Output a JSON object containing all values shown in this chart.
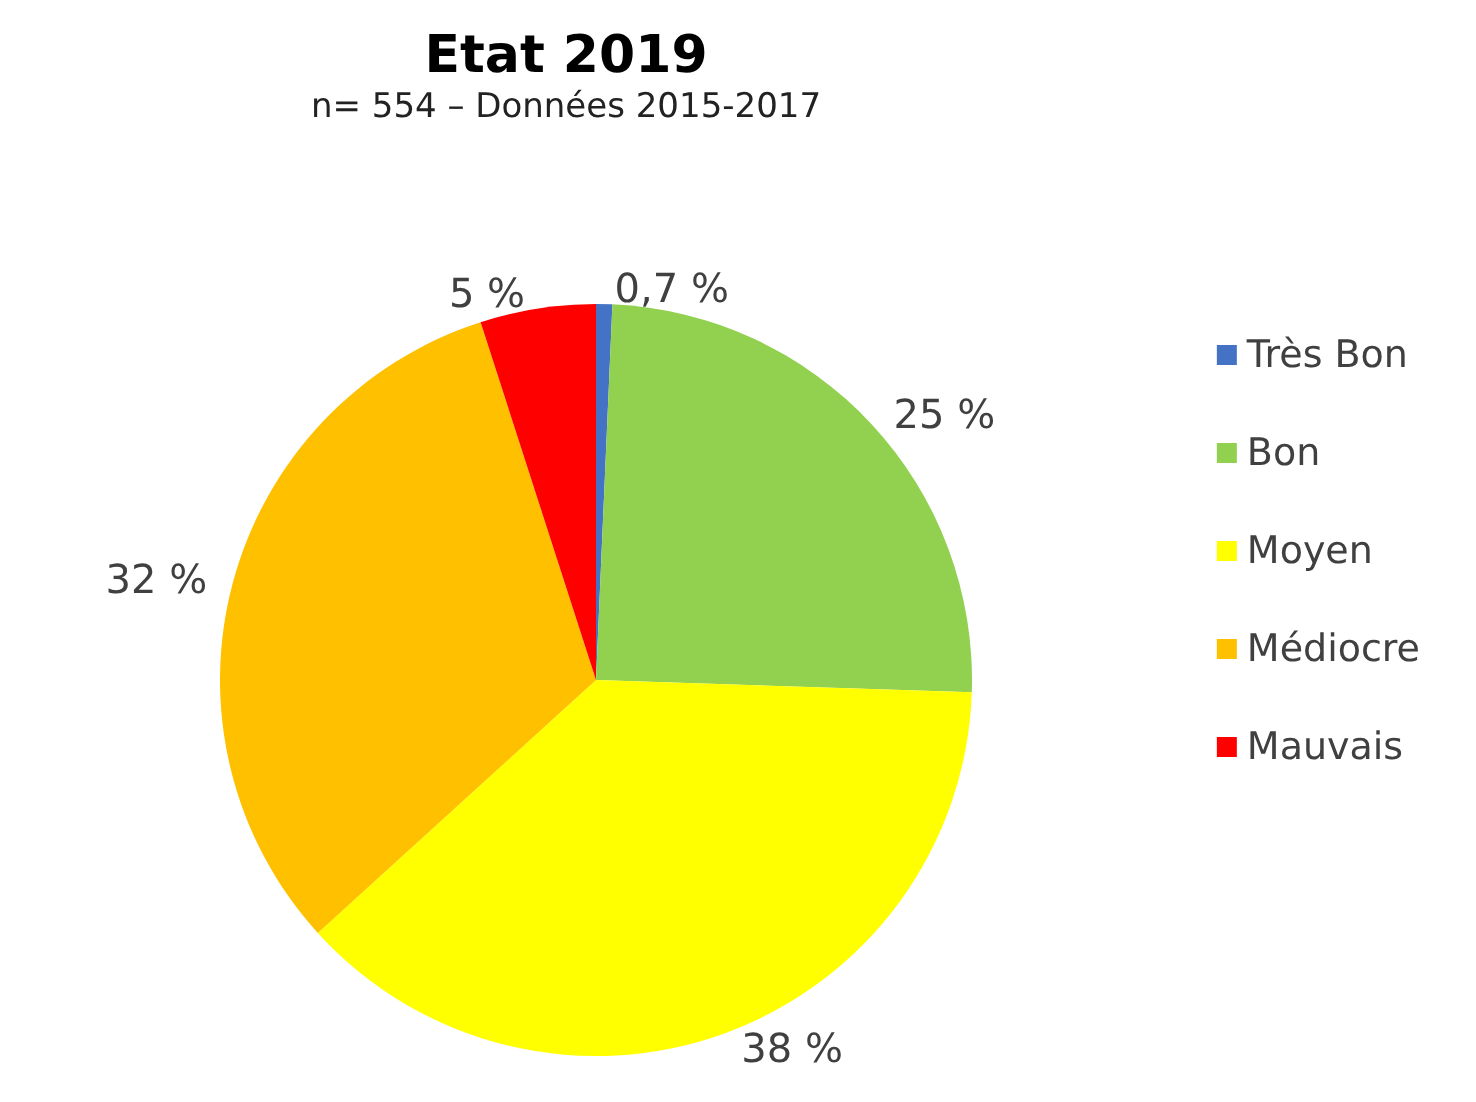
{
  "chart_data": {
    "type": "pie",
    "title": "Etat 2019",
    "subtitle": "n= 554 – Données 2015-2017",
    "categories": [
      "Très Bon",
      "Bon",
      "Moyen",
      "Médiocre",
      "Mauvais"
    ],
    "values": [
      0.7,
      25,
      38,
      32,
      5
    ],
    "value_labels": [
      "0,7 %",
      "25 %",
      "38 %",
      "32 %",
      "5 %"
    ],
    "colors": [
      "#4472c4",
      "#92d050",
      "#ffff00",
      "#ffc000",
      "#ff0000"
    ],
    "legend": "right"
  }
}
